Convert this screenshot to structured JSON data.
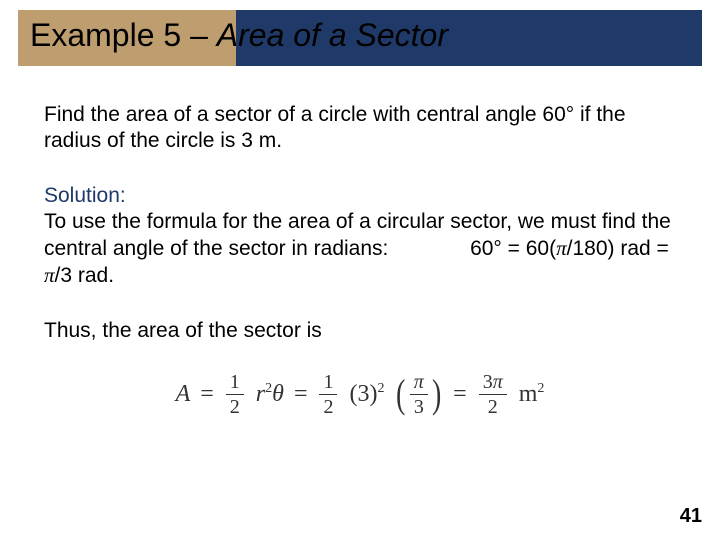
{
  "header": {
    "prefix": "Example 5 – ",
    "italic": "Area of a Sector",
    "colors": {
      "blue": "#1f3a68",
      "tan": "#be9e6f"
    }
  },
  "problem": "Find the area of a sector of a circle with central angle 60° if the radius of the circle is 3 m.",
  "solution": {
    "label": "Solution:",
    "body_a": "To use the formula for the area of a circular sector, we must find the central angle of the sector in radians:",
    "body_b": "60° = 60(",
    "body_c": "/180) rad = ",
    "body_d": "/3 rad."
  },
  "thus": "Thus, the area of the sector is",
  "formula": {
    "lhs": "A",
    "eq": "=",
    "half_num": "1",
    "half_den": "2",
    "r": "r",
    "two": "2",
    "theta": "θ",
    "three_sq": "(3)",
    "pi": "π",
    "three": "3",
    "result_num": "3π",
    "result_den": "2",
    "unit": "m",
    "unit_exp": "2"
  },
  "pagenum": "41"
}
